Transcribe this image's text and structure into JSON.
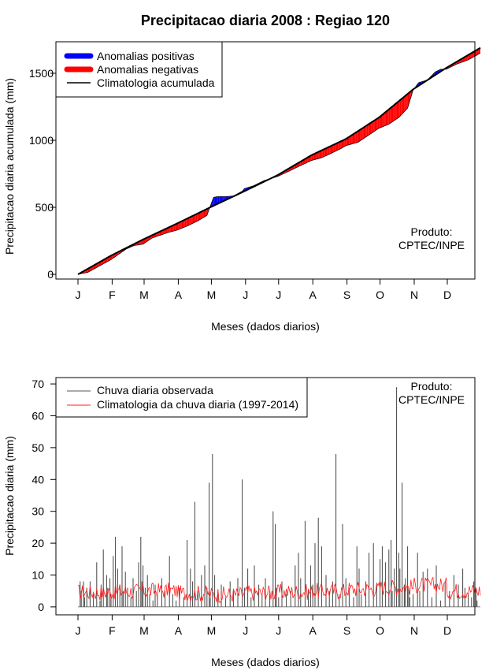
{
  "title": "Precipitacao diaria 2008 : Regiao 120",
  "chart_data": [
    {
      "type": "area",
      "title": "Precipitacao diaria 2008 : Regiao 120",
      "xlabel": "Meses (dados diarios)",
      "ylabel": "Precipitacao diaria acumulada (mm)",
      "x_range": [
        1,
        366
      ],
      "ylim": [
        -35,
        1735
      ],
      "y_ticks": [
        0,
        500,
        1000,
        1500
      ],
      "month_labels": [
        "J",
        "F",
        "M",
        "A",
        "M",
        "J",
        "J",
        "A",
        "S",
        "O",
        "N",
        "D"
      ],
      "month_starts": [
        1,
        32,
        61,
        92,
        122,
        153,
        183,
        214,
        245,
        275,
        306,
        336
      ],
      "legend": {
        "position": "top-left",
        "entries": [
          "Anomalias positivas",
          "Anomalias negativas",
          "Climatologia acumulada"
        ],
        "colors": [
          "#0000ff",
          "#ff0000",
          "#000000"
        ]
      },
      "annotation": [
        "Produto:",
        "CPTEC/INPE"
      ],
      "climatology_points": [
        [
          1,
          0
        ],
        [
          31,
          140
        ],
        [
          60,
          260
        ],
        [
          91,
          380
        ],
        [
          121,
          500
        ],
        [
          152,
          620
        ],
        [
          182,
          740
        ],
        [
          213,
          890
        ],
        [
          244,
          1010
        ],
        [
          274,
          1170
        ],
        [
          305,
          1380
        ],
        [
          335,
          1540
        ],
        [
          366,
          1690
        ]
      ],
      "observed_points": [
        [
          1,
          0
        ],
        [
          10,
          15
        ],
        [
          20,
          60
        ],
        [
          31,
          110
        ],
        [
          38,
          150
        ],
        [
          45,
          190
        ],
        [
          52,
          215
        ],
        [
          60,
          225
        ],
        [
          68,
          270
        ],
        [
          75,
          290
        ],
        [
          82,
          310
        ],
        [
          91,
          330
        ],
        [
          100,
          360
        ],
        [
          110,
          400
        ],
        [
          118,
          440
        ],
        [
          124,
          575
        ],
        [
          128,
          580
        ],
        [
          135,
          580
        ],
        [
          142,
          585
        ],
        [
          150,
          620
        ],
        [
          152,
          640
        ],
        [
          160,
          660
        ],
        [
          170,
          700
        ],
        [
          182,
          730
        ],
        [
          190,
          760
        ],
        [
          200,
          800
        ],
        [
          213,
          850
        ],
        [
          222,
          870
        ],
        [
          230,
          900
        ],
        [
          240,
          940
        ],
        [
          244,
          960
        ],
        [
          255,
          985
        ],
        [
          265,
          1040
        ],
        [
          274,
          1090
        ],
        [
          283,
          1120
        ],
        [
          292,
          1170
        ],
        [
          300,
          1240
        ],
        [
          305,
          1375
        ],
        [
          310,
          1430
        ],
        [
          318,
          1450
        ],
        [
          325,
          1510
        ],
        [
          330,
          1530
        ],
        [
          335,
          1530
        ],
        [
          345,
          1570
        ],
        [
          355,
          1600
        ],
        [
          366,
          1650
        ]
      ]
    },
    {
      "type": "bar",
      "title": "",
      "xlabel": "Meses (dados diarios)",
      "ylabel": "Precipitacao diaria (mm)",
      "x_range": [
        1,
        366
      ],
      "ylim": [
        -2.5,
        72
      ],
      "y_ticks": [
        0,
        10,
        20,
        30,
        40,
        50,
        60,
        70
      ],
      "month_labels": [
        "J",
        "F",
        "M",
        "A",
        "M",
        "J",
        "J",
        "A",
        "S",
        "O",
        "N",
        "D"
      ],
      "month_starts": [
        1,
        32,
        61,
        92,
        122,
        153,
        183,
        214,
        245,
        275,
        306,
        336
      ],
      "legend": {
        "position": "top-left",
        "entries": [
          "Chuva diaria observada",
          "Climatologia da chuva diaria (1997-2014)"
        ],
        "colors": [
          "#555555",
          "#ff2020"
        ]
      },
      "annotation": [
        "Produto:",
        "CPTEC/INPE"
      ],
      "series": [
        {
          "name": "Chuva diaria observada",
          "type": "bar",
          "days": [
            3,
            4,
            6,
            7,
            9,
            12,
            15,
            18,
            21,
            22,
            24,
            27,
            28,
            30,
            31,
            33,
            35,
            37,
            39,
            41,
            42,
            44,
            46,
            49,
            51,
            54,
            56,
            58,
            59,
            60,
            62,
            64,
            66,
            69,
            71,
            73,
            77,
            80,
            84,
            87,
            90,
            93,
            97,
            100,
            103,
            105,
            107,
            110,
            113,
            116,
            118,
            120,
            121,
            123,
            125,
            128,
            131,
            135,
            139,
            142,
            146,
            150,
            152,
            155,
            158,
            161,
            165,
            168,
            171,
            175,
            178,
            180,
            181,
            183,
            186,
            190,
            194,
            198,
            201,
            203,
            207,
            210,
            212,
            214,
            216,
            219,
            222,
            226,
            229,
            232,
            235,
            238,
            241,
            244,
            247,
            251,
            254,
            256,
            258,
            262,
            265,
            269,
            272,
            275,
            277,
            280,
            283,
            285,
            286,
            288,
            290,
            292,
            293,
            295,
            297,
            298,
            300,
            301,
            302,
            305,
            309,
            311,
            314,
            318,
            322,
            326,
            330,
            334,
            338,
            342,
            346,
            350,
            352,
            355,
            358,
            360,
            362,
            363
          ],
          "values": [
            8,
            5,
            8,
            3,
            6,
            8,
            4,
            14,
            2,
            7,
            18,
            10,
            6,
            9,
            4,
            16,
            22,
            12,
            7,
            19,
            5,
            11,
            6,
            3,
            9,
            5,
            14,
            22,
            8,
            13,
            6,
            10,
            4,
            2,
            7,
            3,
            9,
            5,
            16,
            4,
            2,
            6,
            3,
            21,
            12,
            8,
            33,
            5,
            10,
            13,
            6,
            39,
            3,
            48,
            10,
            4,
            7,
            3,
            8,
            5,
            9,
            40,
            6,
            12,
            3,
            13,
            7,
            4,
            9,
            5,
            30,
            26,
            6,
            3,
            8,
            4,
            5,
            13,
            17,
            9,
            27,
            5,
            13,
            7,
            20,
            28,
            19,
            10,
            5,
            8,
            48,
            4,
            26,
            9,
            6,
            3,
            19,
            12,
            4,
            8,
            17,
            20,
            7,
            15,
            19,
            14,
            18,
            21,
            5,
            12,
            69,
            17,
            12,
            39,
            7,
            9,
            19,
            6,
            3,
            4,
            17,
            5,
            11,
            12,
            3,
            13,
            2,
            8,
            5,
            10,
            7,
            12,
            6,
            4,
            3,
            8,
            6,
            2
          ]
        },
        {
          "name": "Climatologia da chuva diaria (1997-2014)",
          "type": "line",
          "monthly_mean": [
            4.6,
            4.9,
            5.1,
            4.3,
            3.9,
            4.4,
            4.7,
            5.0,
            5.6,
            6.2,
            6.8,
            5.1
          ],
          "range": [
            1,
            14
          ]
        }
      ]
    }
  ]
}
